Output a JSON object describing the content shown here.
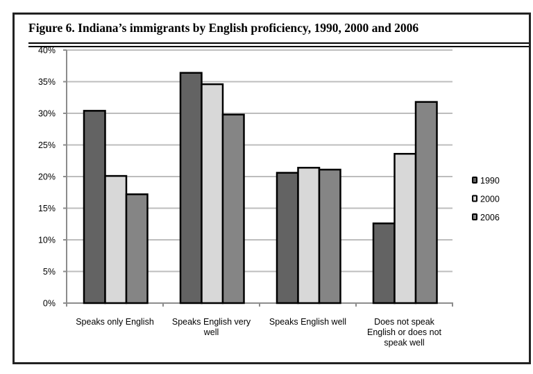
{
  "title": "Figure 6. Indiana’s immigrants by English proficiency, 1990, 2000 and 2006",
  "colors": {
    "1990": "#636363",
    "2000": "#d8d8d8",
    "2006": "#858585",
    "grid": "#bdbdbd",
    "axis": "#8c8c8c"
  },
  "chart_data": {
    "type": "bar",
    "title": "Figure 6. Indiana’s immigrants by English proficiency, 1990, 2000 and 2006",
    "xlabel": "",
    "ylabel": "",
    "ylim": [
      0,
      40
    ],
    "yticks": [
      "0%",
      "5%",
      "10%",
      "15%",
      "20%",
      "25%",
      "30%",
      "35%",
      "40%"
    ],
    "grid": true,
    "legend_position": "right",
    "categories": [
      [
        "Speaks only English"
      ],
      [
        "Speaks English very",
        "well"
      ],
      [
        "Speaks English well"
      ],
      [
        "Does not speak",
        "English or does not",
        "speak well"
      ]
    ],
    "series": [
      {
        "name": "1990",
        "values": [
          30.4,
          36.4,
          20.6,
          12.6
        ]
      },
      {
        "name": "2000",
        "values": [
          20.1,
          34.6,
          21.4,
          23.6
        ]
      },
      {
        "name": "2006",
        "values": [
          17.2,
          29.8,
          21.1,
          31.8
        ]
      }
    ]
  }
}
